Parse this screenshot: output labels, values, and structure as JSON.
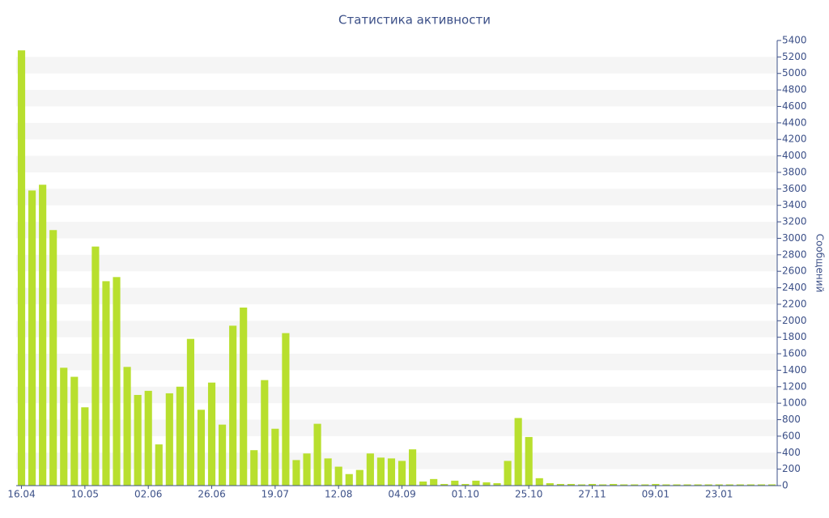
{
  "chart_data": {
    "type": "bar",
    "title": "Статистика активности",
    "y_label": "Сообщений",
    "categories": [
      "16.04",
      null,
      null,
      null,
      null,
      null,
      "10.05",
      null,
      null,
      null,
      null,
      null,
      "02.06",
      null,
      null,
      null,
      null,
      null,
      "26.06",
      null,
      null,
      null,
      null,
      null,
      "19.07",
      null,
      null,
      null,
      null,
      null,
      "12.08",
      null,
      null,
      null,
      null,
      null,
      "04.09",
      null,
      null,
      null,
      null,
      null,
      "01.10",
      null,
      null,
      null,
      null,
      null,
      "25.10",
      null,
      null,
      null,
      null,
      null,
      "27.11",
      null,
      null,
      null,
      null,
      null,
      "09.01",
      null,
      null,
      null,
      null,
      null,
      "23.01",
      null,
      null,
      null,
      null,
      null
    ],
    "values": [
      5280,
      3580,
      3650,
      3100,
      1430,
      1320,
      950,
      2900,
      2480,
      2530,
      1440,
      1100,
      1150,
      500,
      1120,
      1200,
      1780,
      920,
      1250,
      740,
      1940,
      2160,
      430,
      1280,
      690,
      1850,
      310,
      390,
      750,
      330,
      230,
      140,
      190,
      390,
      340,
      330,
      300,
      440,
      50,
      80,
      20,
      60,
      20,
      60,
      40,
      30,
      300,
      820,
      590,
      90,
      30,
      20,
      20,
      15,
      20,
      15,
      20,
      15,
      15,
      15,
      20,
      15,
      15,
      15,
      15,
      15,
      15,
      15,
      15,
      15,
      15,
      15
    ],
    "color": "#b8df2e",
    "ylim": [
      0,
      5400
    ],
    "yticks": [
      0,
      200,
      400,
      600,
      800,
      1000,
      1200,
      1400,
      1600,
      1800,
      2000,
      2200,
      2400,
      2600,
      2800,
      3000,
      3200,
      3400,
      3600,
      3800,
      4000,
      4200,
      4400,
      4600,
      4800,
      5000,
      5200,
      5400
    ],
    "grid": true,
    "y_axis_side": "right"
  }
}
